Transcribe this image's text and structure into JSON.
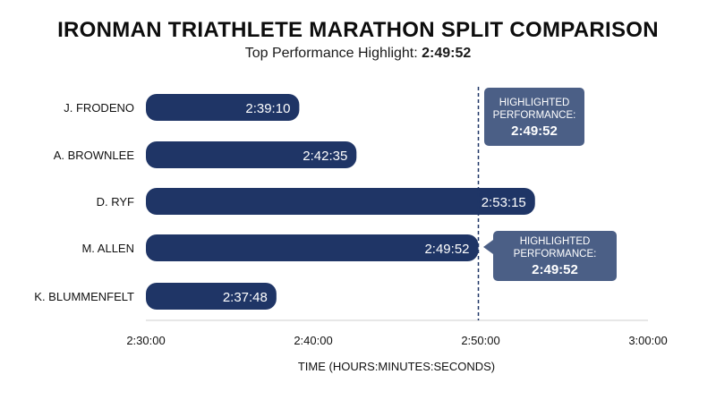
{
  "chart_data": {
    "type": "bar",
    "orientation": "horizontal",
    "title": "IRONMAN TRIATHLETE MARATHON SPLIT COMPARISON",
    "subtitle_prefix": "Top Performance Highlight: ",
    "subtitle_value": "2:49:52",
    "xlabel": "TIME (HOURS:MINUTES:SECONDS)",
    "ylabel": "",
    "categories": [
      "J. FRODENO",
      "A. BROWNLEE",
      "D. RYF",
      "M. ALLEN",
      "K. BLUMMENFELT"
    ],
    "values": [
      "2:39:10",
      "2:42:35",
      "2:53:15",
      "2:49:52",
      "2:37:48"
    ],
    "values_seconds": [
      9550,
      9755,
      10395,
      10192,
      9468
    ],
    "xlim_seconds": [
      9000,
      10800
    ],
    "xticks": [
      "2:30:00",
      "2:40:00",
      "2:50:00",
      "3:00:00"
    ],
    "xticks_seconds": [
      9000,
      9600,
      10200,
      10800
    ],
    "grid": false,
    "reference_line": {
      "value_seconds": 10192,
      "style": "dashed"
    },
    "annotations": [
      {
        "line1": "HIGHLIGHTED",
        "line2": "PERFORMANCE:",
        "value": "2:49:52",
        "row": 0
      },
      {
        "line1": "HIGHLIGHTED",
        "line2": "PERFORMANCE:",
        "value": "2:49:52",
        "row": 3,
        "pointer": "left"
      }
    ],
    "colors": {
      "bar": "#1f3566",
      "annotation_bg": "#4b5f86",
      "axis": "#cfcfcf",
      "text": "#111111"
    }
  }
}
